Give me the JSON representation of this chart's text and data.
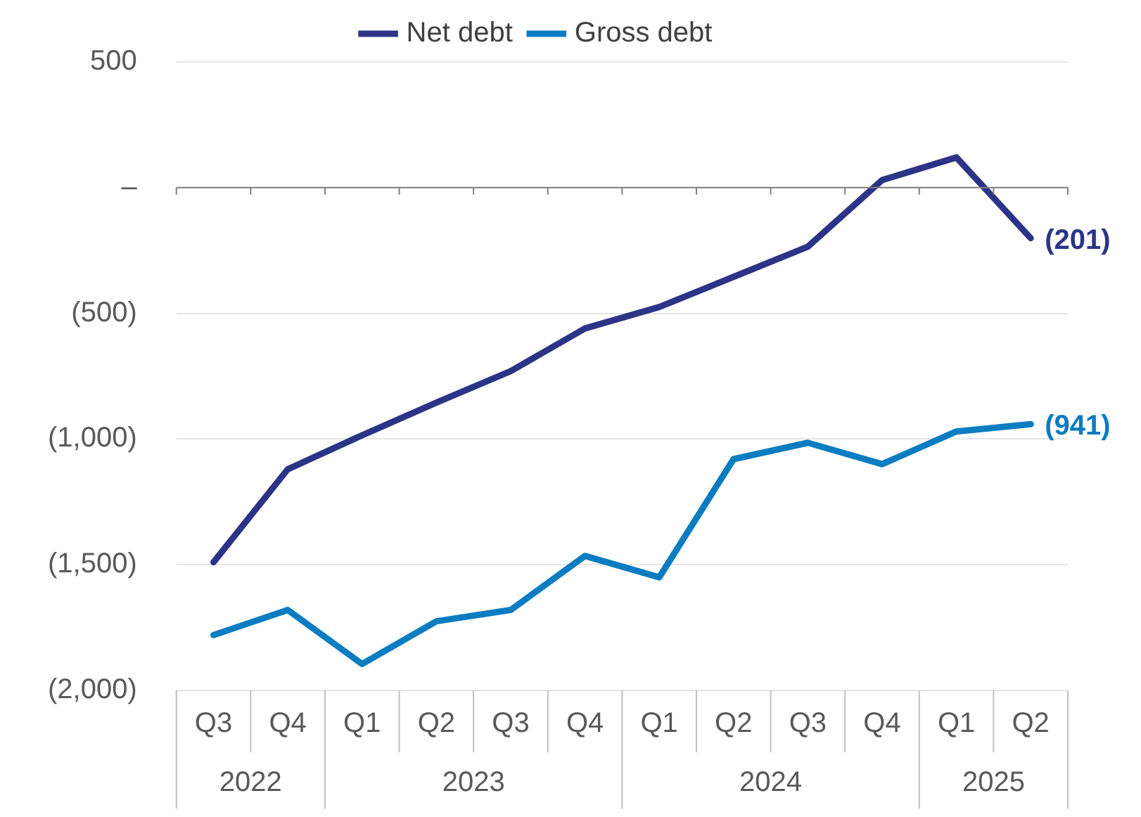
{
  "chart_data": {
    "type": "line",
    "categories": [
      "Q3",
      "Q4",
      "Q1",
      "Q2",
      "Q3",
      "Q4",
      "Q1",
      "Q2",
      "Q3",
      "Q4",
      "Q1",
      "Q2"
    ],
    "series": [
      {
        "name": "Net debt",
        "color": "#2b3486",
        "values": [
          -1490,
          -1120,
          -985,
          -855,
          -730,
          -560,
          -475,
          -355,
          -235,
          30,
          120,
          -201
        ],
        "value_labels": [
          null,
          null,
          null,
          null,
          null,
          null,
          null,
          null,
          null,
          null,
          null,
          "(201)"
        ]
      },
      {
        "name": "Gross debt",
        "color": "#0a7cc1",
        "values": [
          -1780,
          -1680,
          -1895,
          -1725,
          -1680,
          -1465,
          -1550,
          -1080,
          -1015,
          -1100,
          -970,
          -941
        ],
        "value_labels": [
          null,
          null,
          null,
          null,
          null,
          null,
          null,
          null,
          null,
          null,
          null,
          "(941)"
        ]
      }
    ],
    "annotations": [
      "2022",
      "2023",
      "2024",
      "2025"
    ],
    "ylim": [
      -2000,
      500
    ],
    "yticks": [
      {
        "value": 500,
        "label": "500"
      },
      {
        "value": 0,
        "label": "–"
      },
      {
        "value": -500,
        "label": "(500)"
      },
      {
        "value": -1000,
        "label": "(1,000)"
      },
      {
        "value": -1500,
        "label": "(1,500)"
      },
      {
        "value": -2000,
        "label": "(2,000)"
      }
    ],
    "grid": "y",
    "legend": "top",
    "marker": "none",
    "line_style": "solid"
  }
}
